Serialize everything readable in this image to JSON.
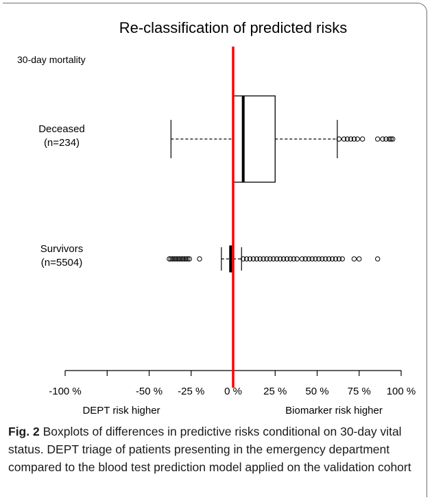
{
  "chart_data": {
    "type": "boxplot",
    "title": "Re-classification of predicted risks",
    "subtitle": "30-day mortality",
    "orientation": "horizontal",
    "xlim": [
      -100,
      100
    ],
    "x_ticks": [
      -100,
      -50,
      -25,
      0,
      25,
      50,
      75,
      100
    ],
    "x_tick_labels": [
      "-100 %",
      "-50 %",
      "-25 %",
      "0 %",
      "25 %",
      "50 %",
      "75 %",
      "100 %"
    ],
    "x_axis_annotations": {
      "left": "DEPT risk higher",
      "right": "Biomarker risk higher"
    },
    "reference_line": {
      "x": 0,
      "color": "#ff0000"
    },
    "groups": [
      {
        "label": "Deceased",
        "n_label": "(n=234)",
        "whisker_low": -37,
        "q1": 0,
        "median": 6,
        "q3": 25,
        "whisker_high": 62,
        "outliers_high": [
          63,
          66,
          68,
          70,
          72,
          74,
          77,
          86,
          89,
          91,
          93,
          94,
          95
        ],
        "outliers_low": []
      },
      {
        "label": "Survivors",
        "n_label": "(n=5504)",
        "whisker_low": -7,
        "q1": -2,
        "median": -1.5,
        "q3": 0,
        "whisker_high": 5,
        "outliers_low": [
          -38,
          -37,
          -36,
          -35,
          -34,
          -33,
          -32,
          -31,
          -30,
          -29,
          -28,
          -27,
          -26,
          -20
        ],
        "outliers_high": [
          6,
          8,
          10,
          12,
          14,
          16,
          18,
          20,
          22,
          24,
          26,
          28,
          30,
          32,
          34,
          36,
          38,
          41,
          43,
          45,
          47,
          49,
          51,
          53,
          55,
          57,
          59,
          61,
          63,
          65,
          72,
          75,
          86
        ]
      }
    ]
  },
  "caption": {
    "label": "Fig. 2",
    "text": " Boxplots of differences in predictive risks conditional on 30-day vital status. DEPT triage of patients presenting in the emergency department compared to the blood test prediction model applied on the validation cohort"
  }
}
